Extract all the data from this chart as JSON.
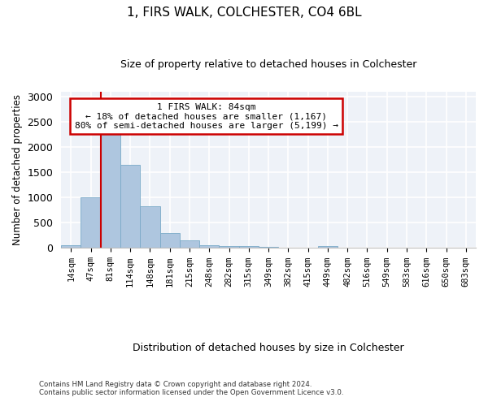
{
  "title": "1, FIRS WALK, COLCHESTER, CO4 6BL",
  "subtitle": "Size of property relative to detached houses in Colchester",
  "xlabel": "Distribution of detached houses by size in Colchester",
  "ylabel": "Number of detached properties",
  "bar_labels": [
    "14sqm",
    "47sqm",
    "81sqm",
    "114sqm",
    "148sqm",
    "181sqm",
    "215sqm",
    "248sqm",
    "282sqm",
    "315sqm",
    "349sqm",
    "382sqm",
    "415sqm",
    "449sqm",
    "482sqm",
    "516sqm",
    "549sqm",
    "583sqm",
    "616sqm",
    "650sqm",
    "683sqm"
  ],
  "bar_values": [
    55,
    1000,
    2460,
    1650,
    830,
    300,
    150,
    55,
    45,
    30,
    20,
    0,
    0,
    30,
    0,
    0,
    0,
    0,
    0,
    0,
    0
  ],
  "bar_color": "#aec6df",
  "bar_edge_color": "#7aaac8",
  "vline_color": "#cc0000",
  "vline_x_index": 2,
  "ylim": [
    0,
    3100
  ],
  "yticks": [
    0,
    500,
    1000,
    1500,
    2000,
    2500,
    3000
  ],
  "annotation_text": "1 FIRS WALK: 84sqm\n← 18% of detached houses are smaller (1,167)\n80% of semi-detached houses are larger (5,199) →",
  "annotation_box_color": "#ffffff",
  "annotation_box_edge": "#cc0000",
  "footnote1": "Contains HM Land Registry data © Crown copyright and database right 2024.",
  "footnote2": "Contains public sector information licensed under the Open Government Licence v3.0.",
  "bg_color": "#eef2f8"
}
